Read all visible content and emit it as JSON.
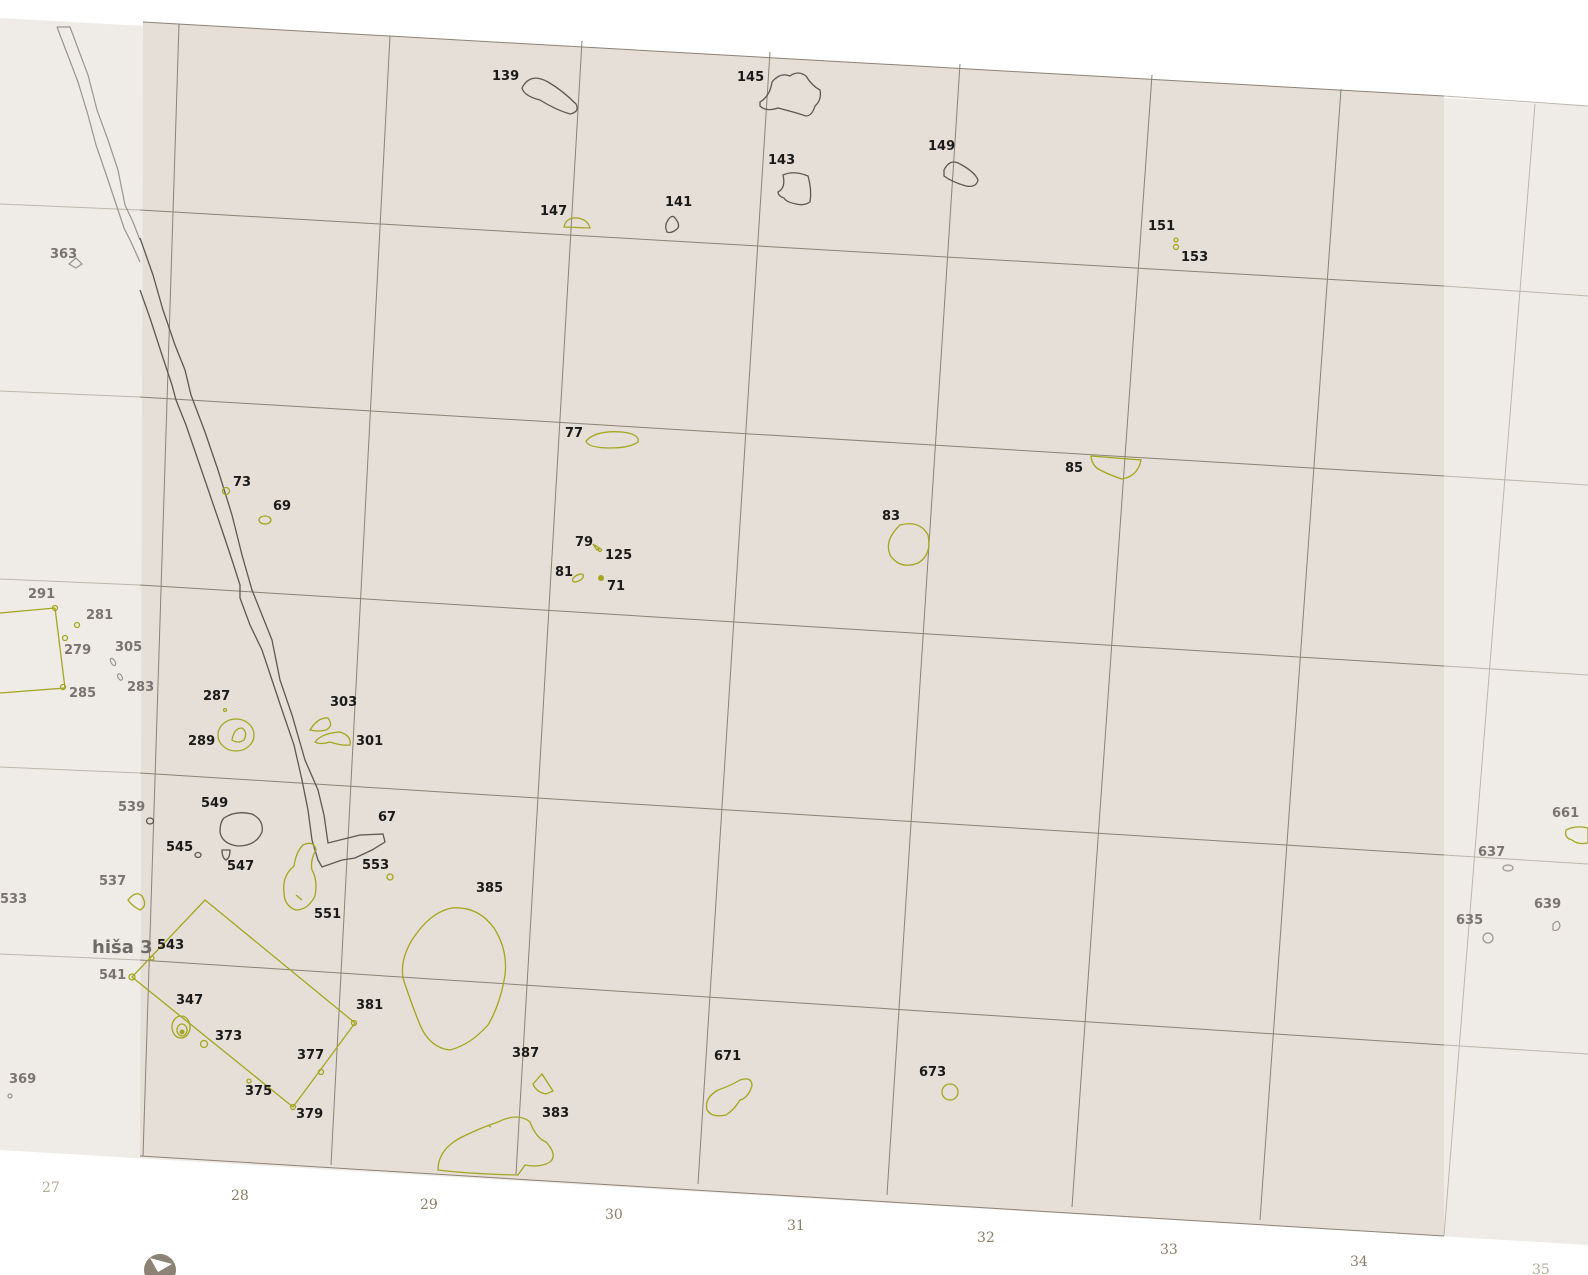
{
  "map": {
    "colors": {
      "trench_fill": "#e6dfd7",
      "outside_fill": "#efece8",
      "grid_line": "#8c8275",
      "feature_natural": "#a3a61f",
      "feature_structure": "#5e5752"
    },
    "house_label": "hiša 3",
    "column_labels": [
      "27",
      "28",
      "29",
      "30",
      "31",
      "32",
      "33",
      "34",
      "35"
    ],
    "features": [
      {
        "id": "139"
      },
      {
        "id": "145"
      },
      {
        "id": "143"
      },
      {
        "id": "149"
      },
      {
        "id": "147"
      },
      {
        "id": "141"
      },
      {
        "id": "151"
      },
      {
        "id": "153"
      },
      {
        "id": "363"
      },
      {
        "id": "77"
      },
      {
        "id": "85"
      },
      {
        "id": "73"
      },
      {
        "id": "69"
      },
      {
        "id": "83"
      },
      {
        "id": "79"
      },
      {
        "id": "125"
      },
      {
        "id": "81"
      },
      {
        "id": "71"
      },
      {
        "id": "291"
      },
      {
        "id": "281"
      },
      {
        "id": "279"
      },
      {
        "id": "305"
      },
      {
        "id": "283"
      },
      {
        "id": "285"
      },
      {
        "id": "287"
      },
      {
        "id": "303"
      },
      {
        "id": "289"
      },
      {
        "id": "301"
      },
      {
        "id": "539"
      },
      {
        "id": "549"
      },
      {
        "id": "67"
      },
      {
        "id": "545"
      },
      {
        "id": "547"
      },
      {
        "id": "553"
      },
      {
        "id": "537"
      },
      {
        "id": "385"
      },
      {
        "id": "533"
      },
      {
        "id": "551"
      },
      {
        "id": "543"
      },
      {
        "id": "541"
      },
      {
        "id": "347"
      },
      {
        "id": "381"
      },
      {
        "id": "373"
      },
      {
        "id": "377"
      },
      {
        "id": "387"
      },
      {
        "id": "671"
      },
      {
        "id": "673"
      },
      {
        "id": "369"
      },
      {
        "id": "375"
      },
      {
        "id": "379"
      },
      {
        "id": "383"
      },
      {
        "id": "661"
      },
      {
        "id": "637"
      },
      {
        "id": "639"
      },
      {
        "id": "635"
      }
    ],
    "north_arrow_icon": "north-arrow-icon"
  }
}
